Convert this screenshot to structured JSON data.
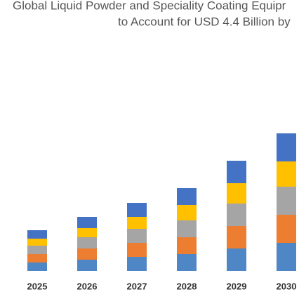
{
  "chart_data": {
    "type": "bar",
    "title_lines": [
      "Global Liquid Powder and Speciality Coating Equipr",
      "to Account for USD 4.4 Billion by"
    ],
    "categories": [
      "2025",
      "2026",
      "2027",
      "2028",
      "2029",
      "2030"
    ],
    "stacked": true,
    "series": [
      {
        "color": "#4f86c6",
        "values": [
          12,
          16,
          20,
          24,
          32,
          40
        ]
      },
      {
        "color": "#ed7d31",
        "values": [
          12,
          16,
          20,
          24,
          32,
          40
        ]
      },
      {
        "color": "#a5a5a5",
        "values": [
          12,
          16,
          20,
          24,
          32,
          40
        ]
      },
      {
        "color": "#ffc000",
        "values": [
          10,
          13,
          17,
          22,
          29,
          36
        ]
      },
      {
        "color": "#4472c4",
        "values": [
          12,
          16,
          20,
          24,
          32,
          40
        ]
      }
    ]
  }
}
